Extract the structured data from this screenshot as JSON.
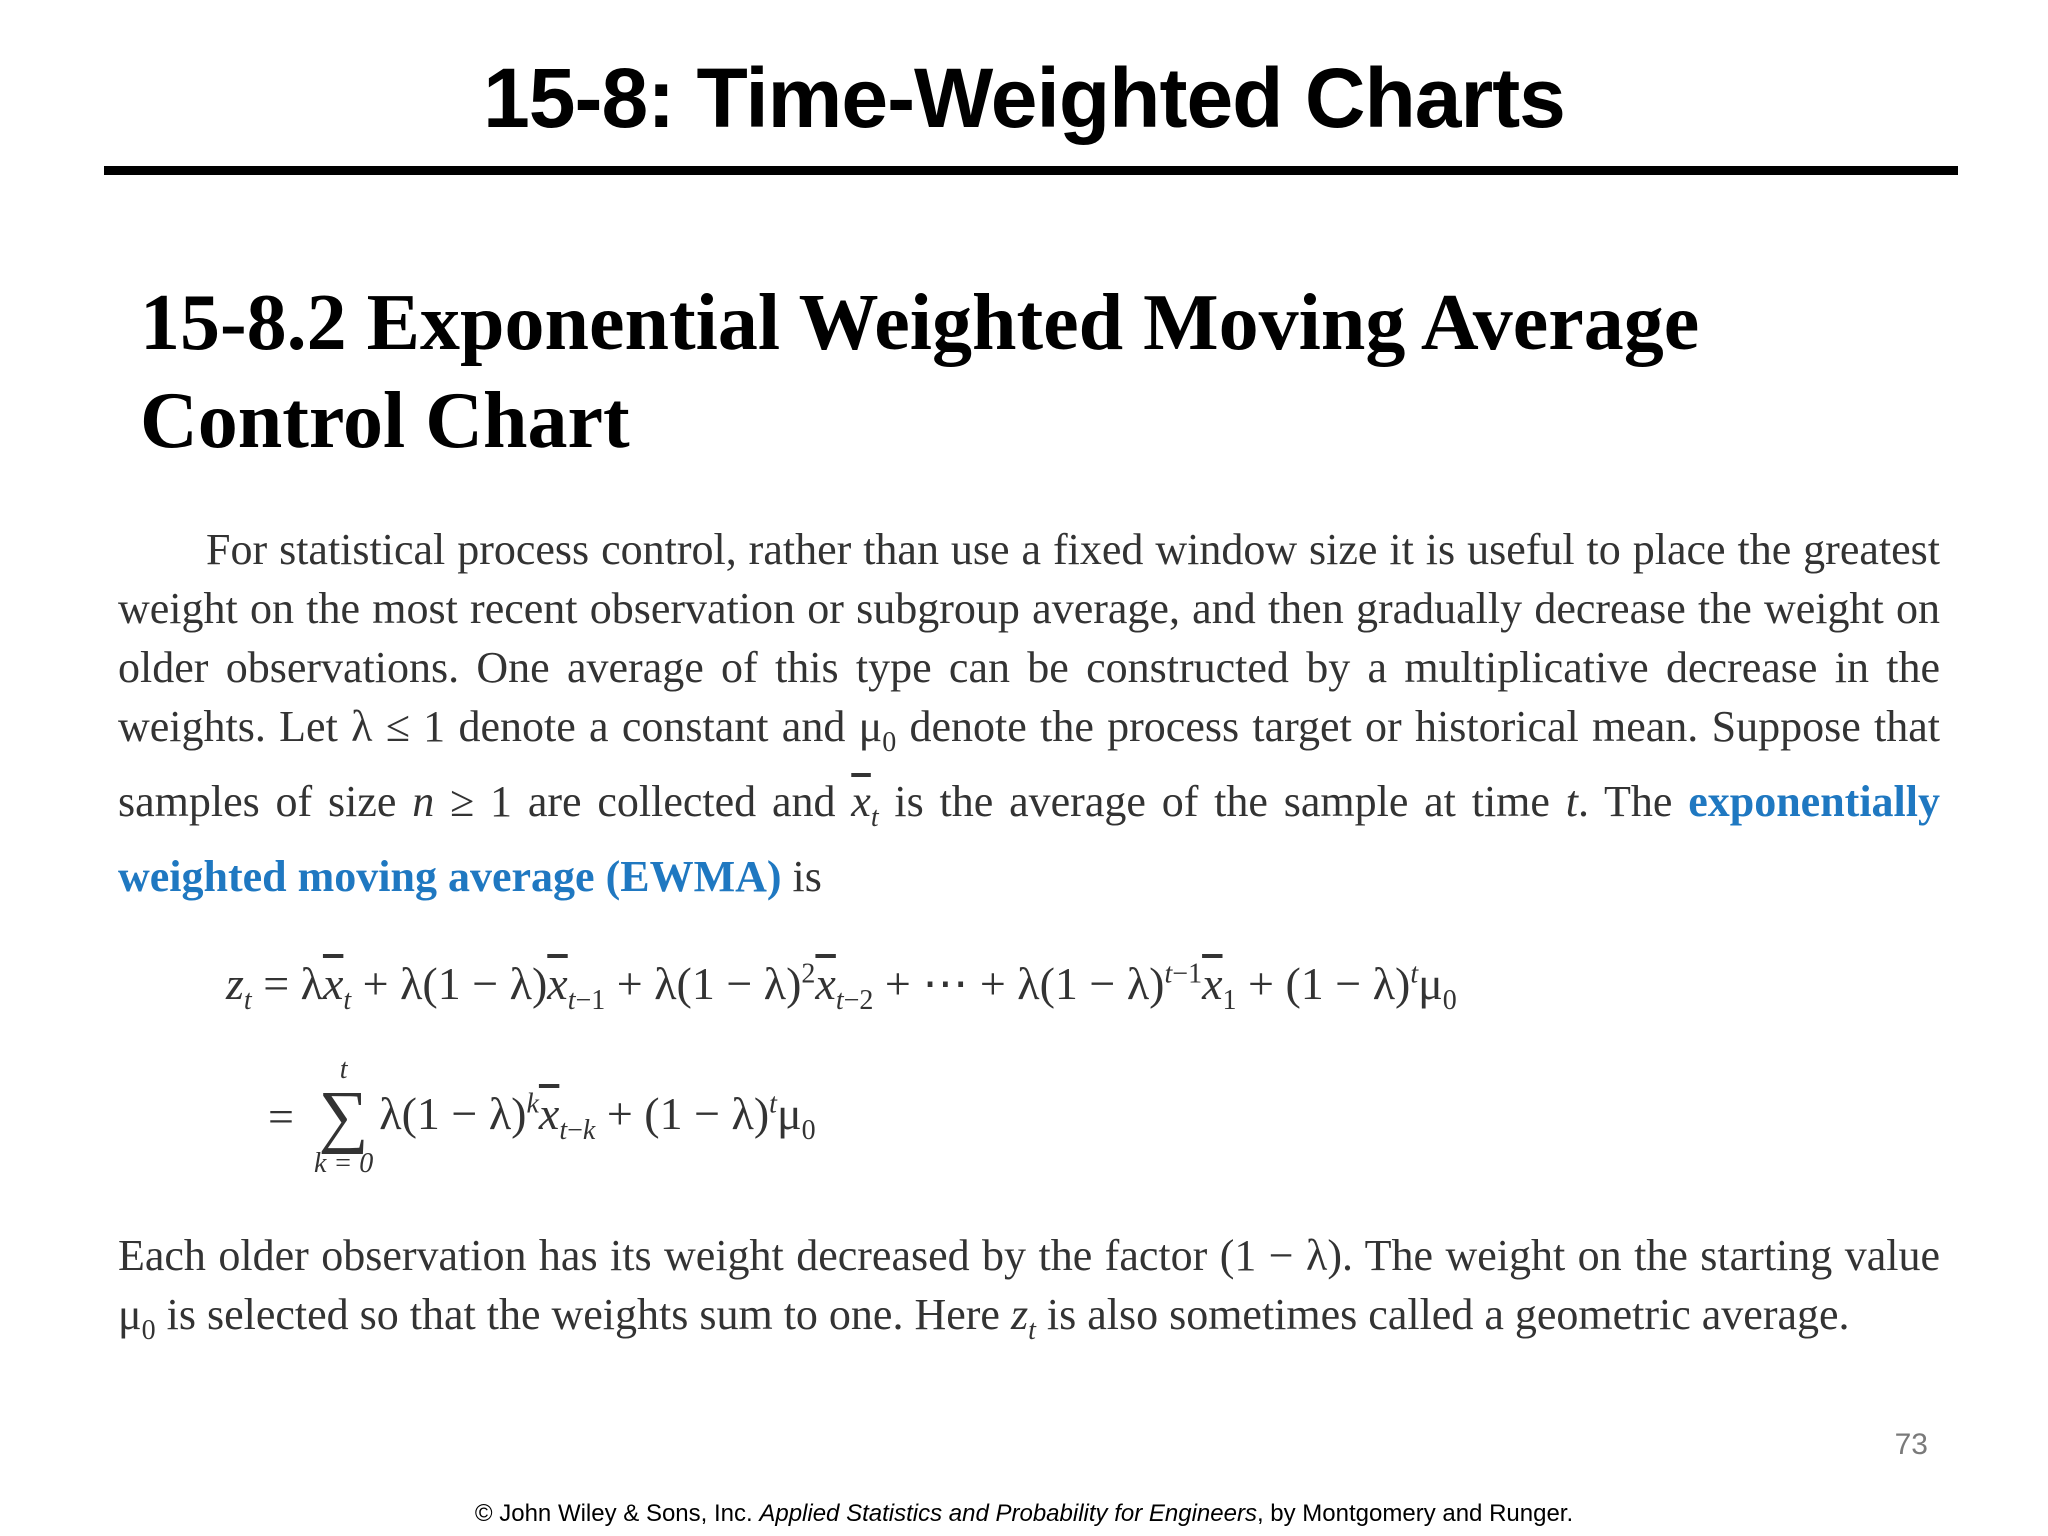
{
  "slide": {
    "title": "15-8: Time-Weighted Charts",
    "section_heading_line1": "15-8.2 Exponential Weighted Moving Average",
    "section_heading_line2": "Control Chart",
    "page_number": "73"
  },
  "excerpt": {
    "p1_a": "For statistical process control, rather than use a fixed window size it is useful to place the greatest weight on the most recent observation or subgroup average, and then gradually decrease the weight on older observations. One average of this type can be constructed by a multiplicative decrease in the weights. Let λ ≤ 1 denote a constant and ",
    "p1_mu0": "μ",
    "p1_mu0_sub": "0",
    "p1_b": " denote the process target or historical mean. Suppose that samples of size ",
    "p1_n": "n",
    "p1_c": " ≥ 1 are collected and ",
    "p1_xbar": "x",
    "p1_xbar_sub": "t",
    "p1_d": " is the average of the sample at time ",
    "p1_t": "t",
    "p1_e": ". The ",
    "p1_term": "exponentially weighted moving average (EWMA)",
    "p1_f": " is",
    "p2_a": "Each older observation has its weight decreased by the factor (1 − λ). The weight on the starting value ",
    "p2_mu0": "μ",
    "p2_mu0_sub": "0",
    "p2_b": " is selected so that the weights sum to one. Here ",
    "p2_z": "z",
    "p2_z_sub": "t",
    "p2_c": " is also sometimes called a geometric average."
  },
  "equation": {
    "line1_text": "= λx̄ₜ + λ(1 − λ)x̄ₜ₋₁ + λ(1 − λ)²x̄ₜ₋₂ + ⋯ + λ(1 − λ)ᵗ⁻¹x̄₁ + (1 − λ)ᵗμ₀",
    "line2_eq": "=",
    "sum_symbol": "∑",
    "sum_upper": "t",
    "sum_lower": "k = 0"
  },
  "footer": {
    "copyright": "© John Wiley & Sons, Inc.  ",
    "book": "Applied Statistics and Probability for Engineers",
    "authors": ", by Montgomery and Runger."
  }
}
